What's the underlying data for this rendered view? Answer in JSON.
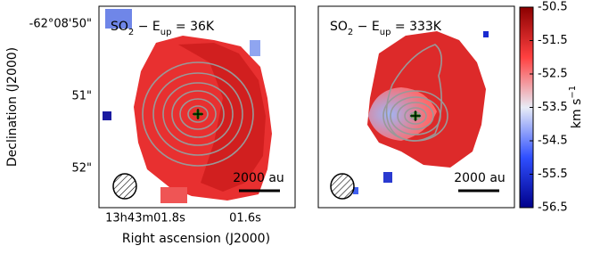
{
  "chart_data": {
    "type": "image",
    "ylabel": "Declination (J2000)",
    "xlabel": "Right ascension (J2000)",
    "yticks": [
      "-62°08'50\"",
      "51\"",
      "52\""
    ],
    "xticks": [
      "13h43m01.8s",
      "01.6s"
    ],
    "panels": [
      {
        "label": [
          {
            "text": "SO"
          },
          {
            "text": "2",
            "sub": true
          },
          {
            "text": " − E"
          },
          {
            "text": "up",
            "sub": true
          },
          {
            "text": " = 36K"
          }
        ],
        "scalebar": "2000 au"
      },
      {
        "label": [
          {
            "text": "SO"
          },
          {
            "text": "2",
            "sub": true
          },
          {
            "text": " − E"
          },
          {
            "text": "up",
            "sub": true
          },
          {
            "text": " = 333K"
          }
        ],
        "scalebar": "2000 au"
      }
    ],
    "colorbar": {
      "clim": [
        -56.5,
        -50.5
      ],
      "ticks": [
        -50.5,
        -51.5,
        -52.5,
        -53.5,
        -54.5,
        -55.5,
        -56.5
      ],
      "colormap": [
        "#00008b",
        "#2f4fff",
        "#e8ecf6",
        "#ff4040",
        "#8b0000"
      ],
      "label": [
        {
          "text": "km s"
        },
        {
          "text": "−1",
          "sup": true
        }
      ]
    }
  }
}
